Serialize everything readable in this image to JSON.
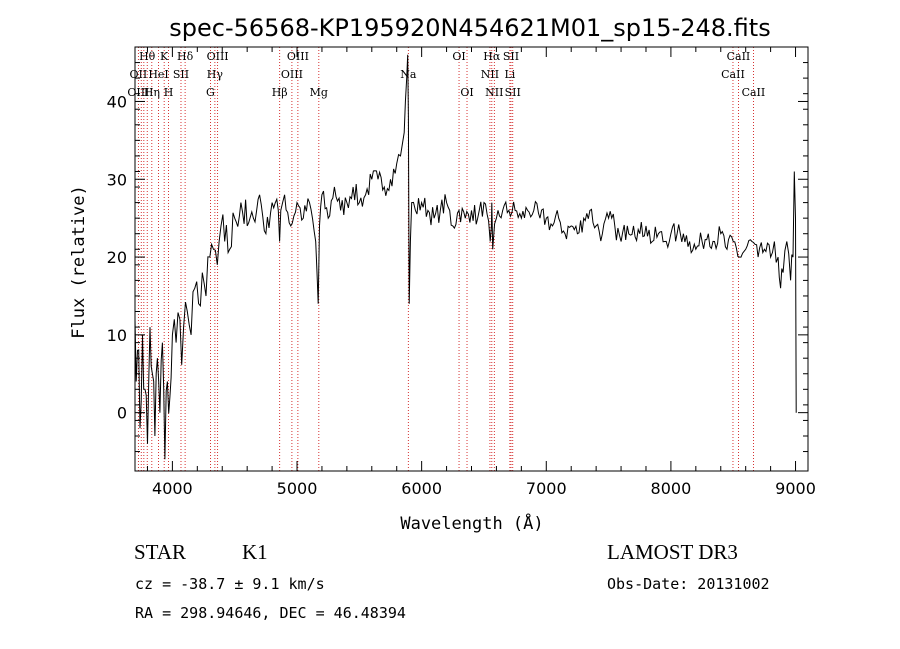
{
  "chart_data": {
    "type": "line",
    "title": "spec-56568-KP195920N454621M01_sp15-248.fits",
    "xlabel": "Wavelength (Å)",
    "ylabel": "Flux (relative)",
    "xlim": [
      3700,
      9100
    ],
    "ylim": [
      -7.5,
      47
    ],
    "xticks": [
      4000,
      5000,
      6000,
      7000,
      8000,
      9000
    ],
    "yticks": [
      0,
      10,
      20,
      30,
      40
    ],
    "xtick_labels": [
      "4000",
      "5000",
      "6000",
      "7000",
      "8000",
      "9000"
    ],
    "ytick_labels": [
      "0",
      "10",
      "20",
      "30",
      "40"
    ],
    "series": [
      {
        "name": "spectrum",
        "x": [
          3700,
          3720,
          3740,
          3760,
          3780,
          3800,
          3820,
          3840,
          3860,
          3880,
          3900,
          3920,
          3940,
          3960,
          3980,
          4000,
          4030,
          4060,
          4090,
          4120,
          4150,
          4180,
          4210,
          4240,
          4270,
          4300,
          4330,
          4360,
          4390,
          4420,
          4460,
          4500,
          4550,
          4600,
          4650,
          4700,
          4750,
          4800,
          4850,
          4860,
          4870,
          4900,
          4950,
          5000,
          5050,
          5100,
          5150,
          5170,
          5180,
          5200,
          5250,
          5300,
          5350,
          5400,
          5450,
          5500,
          5550,
          5600,
          5650,
          5700,
          5750,
          5800,
          5830,
          5860,
          5870,
          5880,
          5888,
          5894,
          5900,
          5910,
          5920,
          5950,
          6000,
          6050,
          6100,
          6150,
          6200,
          6250,
          6300,
          6350,
          6400,
          6450,
          6500,
          6550,
          6560,
          6563,
          6570,
          6600,
          6650,
          6700,
          6750,
          6800,
          6850,
          6900,
          6950,
          7000,
          7050,
          7100,
          7150,
          7200,
          7250,
          7300,
          7350,
          7400,
          7450,
          7500,
          7550,
          7600,
          7650,
          7700,
          7750,
          7800,
          7850,
          7900,
          7950,
          8000,
          8050,
          8100,
          8150,
          8200,
          8250,
          8300,
          8350,
          8400,
          8450,
          8500,
          8550,
          8600,
          8650,
          8700,
          8750,
          8800,
          8830,
          8860,
          8880,
          8900,
          8930,
          8960,
          8980,
          8990,
          9000,
          9005
        ],
        "y": [
          12,
          8,
          -2,
          10,
          3,
          -4,
          11,
          5,
          -3,
          7,
          0,
          9,
          -6,
          4,
          2,
          10,
          9,
          12,
          11,
          13,
          10,
          16,
          14,
          18,
          15,
          20,
          21,
          19,
          24,
          22,
          21,
          25,
          27,
          24,
          25,
          28,
          23,
          27,
          26,
          22,
          26,
          28,
          24,
          27,
          25,
          27,
          22,
          14,
          24,
          28,
          25,
          29,
          26,
          27,
          29,
          27,
          28,
          30,
          30,
          29,
          30,
          32,
          33,
          36,
          40,
          43,
          46,
          38,
          14,
          22,
          27,
          26,
          27,
          26,
          25,
          26,
          27,
          24,
          26,
          25,
          26,
          25,
          27,
          22,
          24,
          27,
          21,
          25,
          26,
          26,
          26,
          25,
          26,
          26,
          25,
          25,
          24,
          25,
          23,
          24,
          23,
          25,
          26,
          24,
          23,
          25,
          24,
          22,
          24,
          24,
          23,
          24,
          22,
          23,
          22,
          23,
          23,
          23,
          22,
          21,
          22,
          23,
          22,
          23,
          21,
          22,
          20,
          21,
          22,
          20,
          21,
          20,
          22,
          20,
          16,
          18,
          22,
          17,
          20,
          31,
          25,
          0
        ]
      }
    ],
    "line_labels": [
      {
        "text": "Hθ",
        "x": 3798,
        "row": 0
      },
      {
        "text": "OII",
        "x": 3727,
        "row": 1
      },
      {
        "text": "OIII",
        "x": 3727,
        "row": 2
      },
      {
        "text": "Hη",
        "x": 3836,
        "row": 2
      },
      {
        "text": "HeI",
        "x": 3889,
        "row": 1
      },
      {
        "text": "K",
        "x": 3934,
        "row": 0
      },
      {
        "text": "H",
        "x": 3969,
        "row": 2
      },
      {
        "text": "SII",
        "x": 4069,
        "row": 1
      },
      {
        "text": "Hδ",
        "x": 4102,
        "row": 0
      },
      {
        "text": "OIII",
        "x": 4363,
        "row": 0
      },
      {
        "text": "Hγ",
        "x": 4341,
        "row": 1
      },
      {
        "text": "G",
        "x": 4305,
        "row": 2
      },
      {
        "text": "Hβ",
        "x": 4861,
        "row": 2
      },
      {
        "text": "OIII",
        "x": 5007,
        "row": 0
      },
      {
        "text": "OIII",
        "x": 4959,
        "row": 1
      },
      {
        "text": "Mg",
        "x": 5175,
        "row": 2
      },
      {
        "text": "Na",
        "x": 5893,
        "row": 1
      },
      {
        "text": "OI",
        "x": 6300,
        "row": 0
      },
      {
        "text": "OI",
        "x": 6364,
        "row": 2
      },
      {
        "text": "Hα",
        "x": 6563,
        "row": 0
      },
      {
        "text": "NII",
        "x": 6548,
        "row": 1
      },
      {
        "text": "NII",
        "x": 6583,
        "row": 2
      },
      {
        "text": "SII",
        "x": 6717,
        "row": 0
      },
      {
        "text": "Li",
        "x": 6708,
        "row": 1
      },
      {
        "text": "SII",
        "x": 6731,
        "row": 2
      },
      {
        "text": "CaII",
        "x": 8542,
        "row": 0
      },
      {
        "text": "CaII",
        "x": 8498,
        "row": 1
      },
      {
        "text": "CaII",
        "x": 8662,
        "row": 2
      }
    ],
    "line_markers": [
      3727,
      3750,
      3771,
      3798,
      3835,
      3889,
      3934,
      3969,
      4069,
      4102,
      4305,
      4341,
      4363,
      4861,
      4959,
      5007,
      5175,
      5893,
      6300,
      6364,
      6548,
      6563,
      6583,
      6708,
      6717,
      6731,
      8498,
      8542,
      8662
    ],
    "colors": {
      "spectrum": "#000000",
      "marker": "#cc0000",
      "axes": "#000000"
    }
  },
  "info": {
    "class": "STAR",
    "subclass": "K1",
    "survey": "LAMOST DR3",
    "redshift": "cz = -38.7 ± 9.1 km/s",
    "obs_date": "Obs-Date: 20131002",
    "coords": "RA = 298.94646, DEC =  46.48394"
  }
}
